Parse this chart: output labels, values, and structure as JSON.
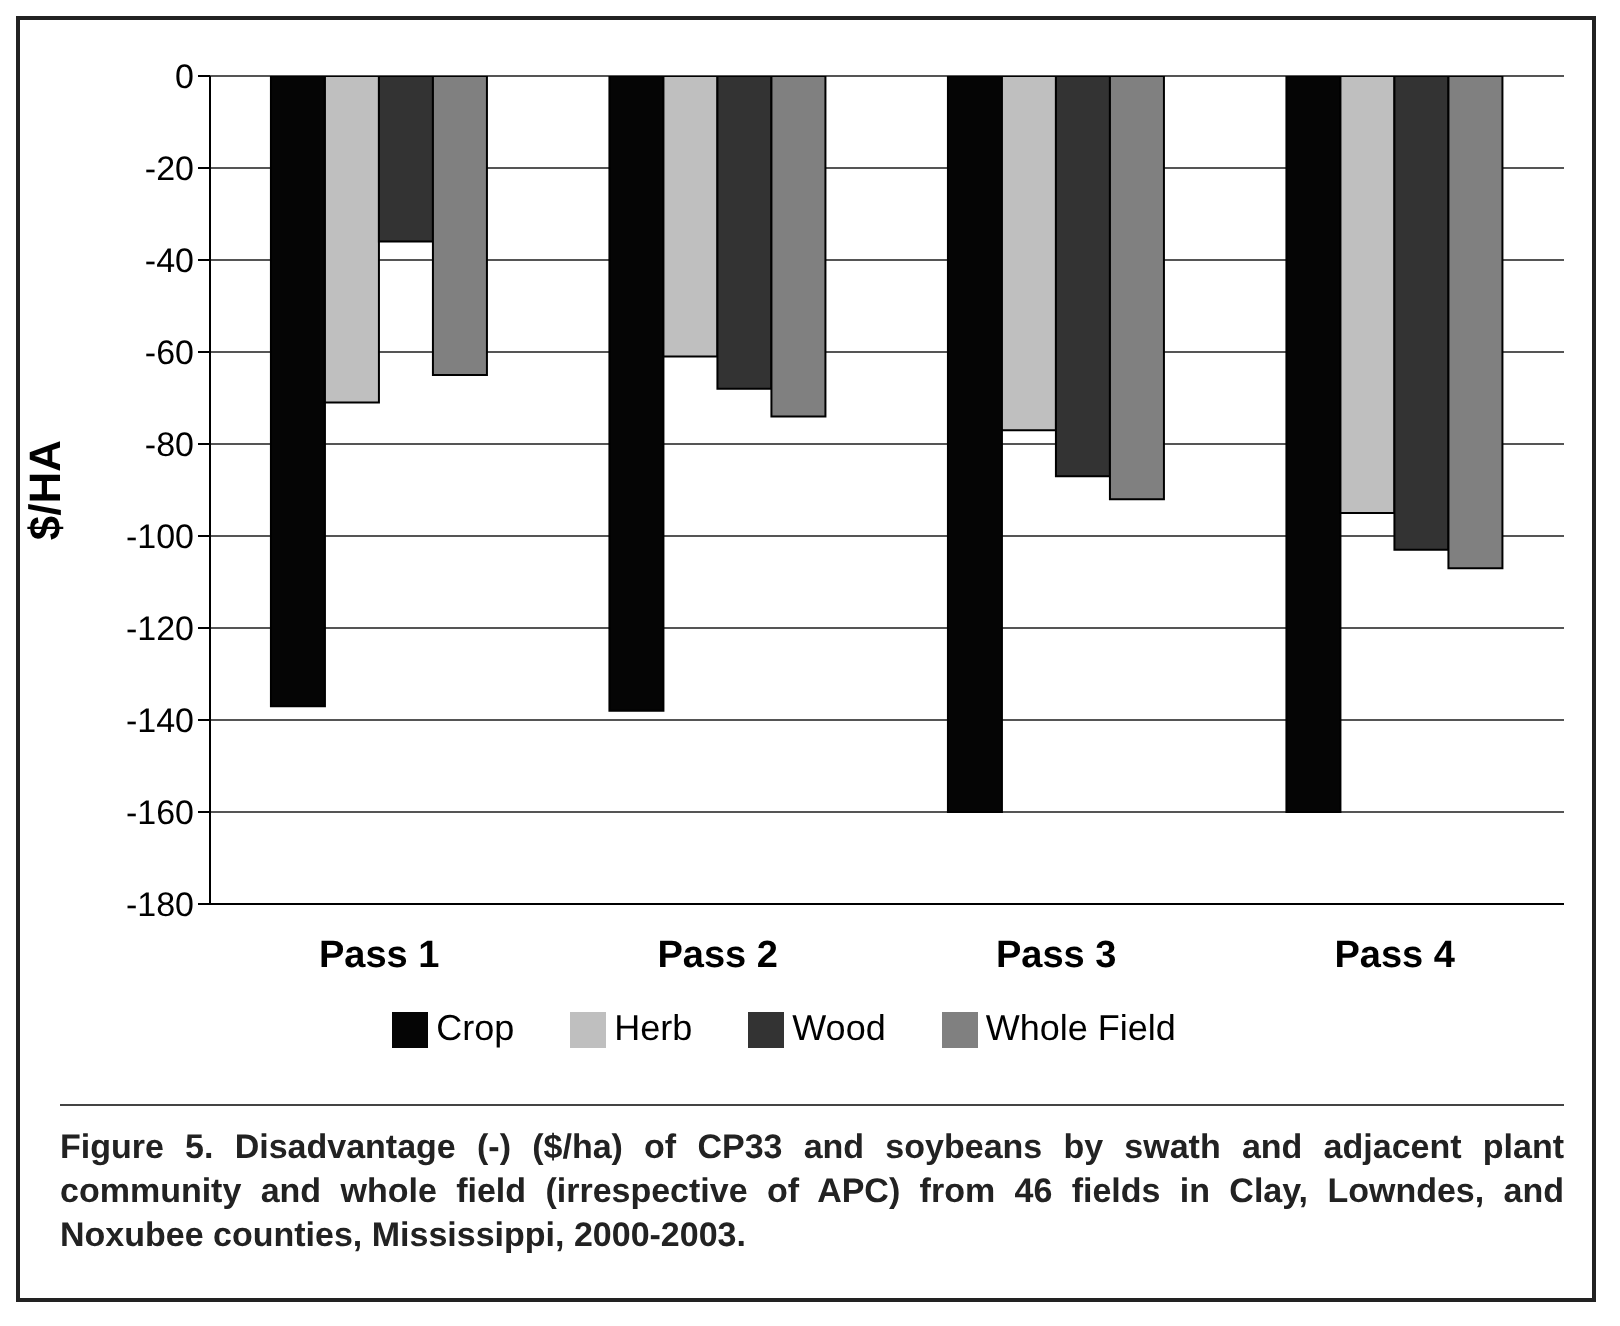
{
  "chart_data": {
    "type": "bar",
    "ylabel": "$/HA",
    "categories": [
      "Pass 1",
      "Pass 2",
      "Pass 3",
      "Pass 4"
    ],
    "series": [
      {
        "name": "Crop",
        "color": "#050505",
        "values": [
          -137,
          -138,
          -160,
          -160
        ]
      },
      {
        "name": "Herb",
        "color": "#bfbfbf",
        "values": [
          -71,
          -61,
          -77,
          -95
        ]
      },
      {
        "name": "Wood",
        "color": "#333333",
        "values": [
          -36,
          -68,
          -87,
          -103
        ]
      },
      {
        "name": "Whole Field",
        "color": "#808080",
        "values": [
          -65,
          -74,
          -92,
          -107
        ]
      }
    ],
    "ylim": [
      -180,
      0
    ],
    "yticks": [
      -180,
      -160,
      -140,
      -120,
      -100,
      -80,
      -60,
      -40,
      -20,
      0
    ],
    "grid": "y",
    "legend": "bottom",
    "annotations": [
      "Figure 5. Disadvantage (-) ($/ha) of CP33 and soybeans by swath and adjacent plant community and whole field (irrespective of APC) from 46 fields in Clay, Lowndes, and Noxubee counties, Mississippi, 2000-2003."
    ]
  }
}
